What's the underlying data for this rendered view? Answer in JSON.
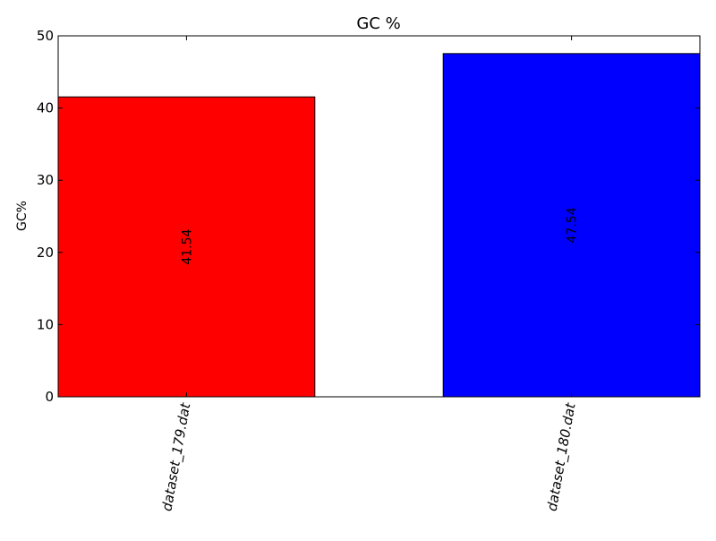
{
  "chart_data": {
    "type": "bar",
    "title": "GC %",
    "xlabel": "",
    "ylabel": "GC%",
    "categories": [
      "dataset_179.dat",
      "dataset_180.dat"
    ],
    "values": [
      41.54,
      47.54
    ],
    "value_labels": [
      "41.54",
      "47.54"
    ],
    "bar_colors": [
      "#ff0000",
      "#0000ff"
    ],
    "ylim": [
      0,
      50
    ],
    "yticks": [
      0,
      10,
      20,
      30,
      40,
      50
    ],
    "ytick_labels": [
      "0",
      "10",
      "20",
      "30",
      "40",
      "50"
    ],
    "grid": false,
    "legend": "none"
  }
}
